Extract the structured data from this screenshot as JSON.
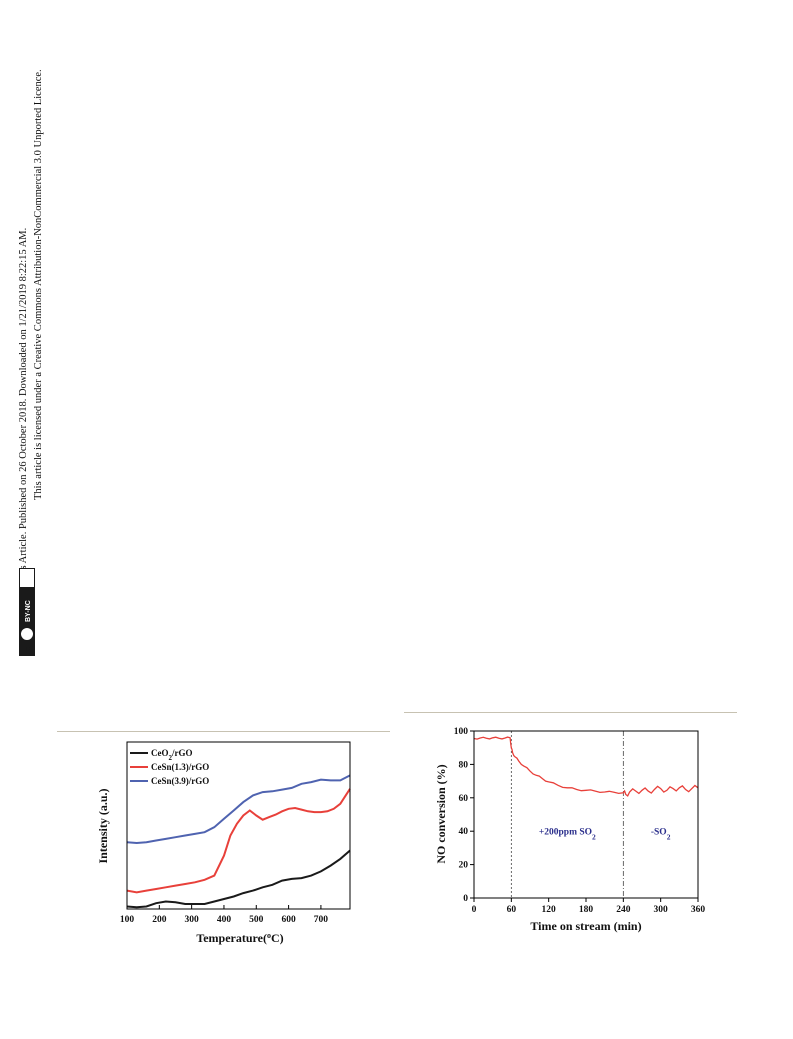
{
  "side_notice": {
    "line1": "Open Access Article. Published on 26 October 2018. Downloaded on 1/21/2019 8:22:15 AM.",
    "line2": "This article is licensed under a Creative Commons Attribution-NonCommercial 3.0 Unported Licence.",
    "badge_cc": "cc",
    "badge_text": "BY-NC"
  },
  "chart_data": [
    {
      "type": "line",
      "xlabel": "Temperature(°C)",
      "ylabel": "Intensity (a.u.)",
      "xlim": [
        100,
        790
      ],
      "ylim": [
        0,
        10
      ],
      "xticks": [
        100,
        200,
        300,
        400,
        500,
        600,
        700
      ],
      "grid": false,
      "legend_position": "top-left",
      "series": [
        {
          "name": "CeO2/rGO",
          "color": "#1a1a1a",
          "x": [
            100,
            130,
            160,
            190,
            220,
            250,
            280,
            310,
            340,
            370,
            400,
            430,
            460,
            490,
            520,
            550,
            580,
            610,
            640,
            670,
            700,
            730,
            760,
            790
          ],
          "y": [
            0.15,
            0.1,
            0.15,
            0.35,
            0.45,
            0.4,
            0.3,
            0.3,
            0.3,
            0.45,
            0.6,
            0.75,
            0.95,
            1.1,
            1.3,
            1.45,
            1.7,
            1.8,
            1.85,
            2.0,
            2.25,
            2.6,
            3.0,
            3.5
          ]
        },
        {
          "name": "CeSn(1.3)/rGO",
          "color": "#e8403a",
          "x": [
            100,
            130,
            160,
            190,
            220,
            250,
            280,
            310,
            340,
            370,
            400,
            420,
            440,
            460,
            480,
            500,
            520,
            540,
            560,
            580,
            600,
            620,
            640,
            660,
            680,
            700,
            720,
            740,
            760,
            790
          ],
          "y": [
            1.1,
            1.0,
            1.1,
            1.2,
            1.3,
            1.4,
            1.5,
            1.6,
            1.75,
            2.0,
            3.2,
            4.4,
            5.1,
            5.6,
            5.9,
            5.6,
            5.35,
            5.5,
            5.65,
            5.85,
            6.0,
            6.05,
            5.95,
            5.85,
            5.8,
            5.8,
            5.85,
            6.0,
            6.3,
            7.2
          ]
        },
        {
          "name": "CeSn(3.9)/rGO",
          "color": "#4f63b0",
          "x": [
            100,
            130,
            160,
            190,
            220,
            250,
            280,
            310,
            340,
            370,
            400,
            430,
            460,
            490,
            520,
            550,
            580,
            610,
            640,
            670,
            700,
            730,
            760,
            790
          ],
          "y": [
            4.0,
            3.95,
            4.0,
            4.1,
            4.2,
            4.3,
            4.4,
            4.5,
            4.6,
            4.9,
            5.4,
            5.9,
            6.4,
            6.8,
            7.0,
            7.05,
            7.15,
            7.25,
            7.5,
            7.6,
            7.75,
            7.7,
            7.7,
            8.0
          ]
        }
      ]
    },
    {
      "type": "line",
      "xlabel": "Time on stream (min)",
      "ylabel": "NO conversion (%)",
      "xlim": [
        0,
        360
      ],
      "ylim": [
        0,
        100
      ],
      "xticks": [
        0,
        60,
        120,
        180,
        240,
        300,
        360
      ],
      "yticks": [
        0,
        20,
        40,
        60,
        80,
        100
      ],
      "grid": false,
      "vlines": [
        60,
        240
      ],
      "annotations": [
        {
          "text": "+200ppm SO",
          "sub": "2",
          "x": 150,
          "y": 38
        },
        {
          "text": "-SO",
          "sub": "2",
          "x": 300,
          "y": 38
        }
      ],
      "series": [
        {
          "name": "NO conversion",
          "color": "#e8403a",
          "x": [
            0,
            10,
            20,
            30,
            40,
            50,
            58,
            60,
            62,
            66,
            72,
            80,
            90,
            100,
            110,
            120,
            135,
            150,
            165,
            180,
            195,
            210,
            225,
            240,
            244,
            250,
            260,
            270,
            280,
            290,
            300,
            310,
            320,
            330,
            340,
            350,
            360
          ],
          "y": [
            95.5,
            95.8,
            95.6,
            95.9,
            95.7,
            95.8,
            95.9,
            90,
            87,
            84.5,
            82,
            79,
            76,
            73.5,
            71.5,
            69.5,
            67.5,
            66,
            65,
            64.5,
            64,
            63.5,
            63.3,
            63,
            62,
            63.5,
            64,
            64.5,
            64,
            65,
            65.5,
            64.5,
            65.5,
            66,
            65,
            65.5,
            66
          ]
        }
      ]
    }
  ]
}
